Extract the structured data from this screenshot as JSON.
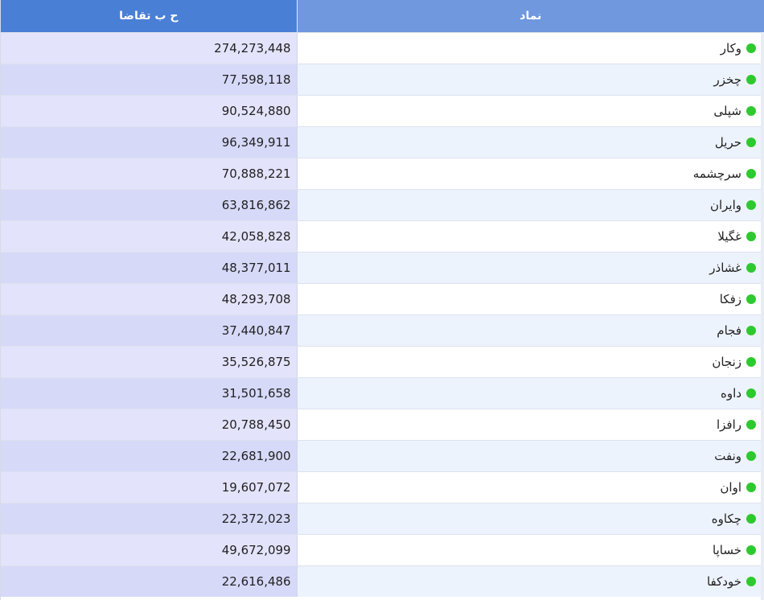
{
  "header": {
    "demand_label": "ح ب تقاضا",
    "symbol_label": "نماد"
  },
  "colors": {
    "header_left": "#4a7fd6",
    "header_right": "#6f98de",
    "status_dot": "#2ec92e"
  },
  "rows": [
    {
      "symbol": "وکار",
      "demand": "274,273,448",
      "status": "green-dot-icon"
    },
    {
      "symbol": "چخزر",
      "demand": "77,598,118",
      "status": "green-dot-icon"
    },
    {
      "symbol": "شپلی",
      "demand": "90,524,880",
      "status": "green-dot-icon"
    },
    {
      "symbol": "حریل",
      "demand": "96,349,911",
      "status": "green-dot-icon"
    },
    {
      "symbol": "سرچشمه",
      "demand": "70,888,221",
      "status": "green-dot-icon"
    },
    {
      "symbol": "وایران",
      "demand": "63,816,862",
      "status": "green-dot-icon"
    },
    {
      "symbol": "غگیلا",
      "demand": "42,058,828",
      "status": "green-dot-icon"
    },
    {
      "symbol": "غشاذر",
      "demand": "48,377,011",
      "status": "green-dot-icon"
    },
    {
      "symbol": "زفکا",
      "demand": "48,293,708",
      "status": "green-dot-icon"
    },
    {
      "symbol": "فجام",
      "demand": "37,440,847",
      "status": "green-dot-icon"
    },
    {
      "symbol": "زنجان",
      "demand": "35,526,875",
      "status": "green-dot-icon"
    },
    {
      "symbol": "داوه",
      "demand": "31,501,658",
      "status": "green-dot-icon"
    },
    {
      "symbol": "رافزا",
      "demand": "20,788,450",
      "status": "green-dot-icon"
    },
    {
      "symbol": "ونفت",
      "demand": "22,681,900",
      "status": "green-dot-icon"
    },
    {
      "symbol": "اوان",
      "demand": "19,607,072",
      "status": "green-dot-icon"
    },
    {
      "symbol": "چکاوه",
      "demand": "22,372,023",
      "status": "green-dot-icon"
    },
    {
      "symbol": "خساپا",
      "demand": "49,672,099",
      "status": "green-dot-icon"
    },
    {
      "symbol": "خودکفا",
      "demand": "22,616,486",
      "status": "green-dot-icon"
    }
  ]
}
